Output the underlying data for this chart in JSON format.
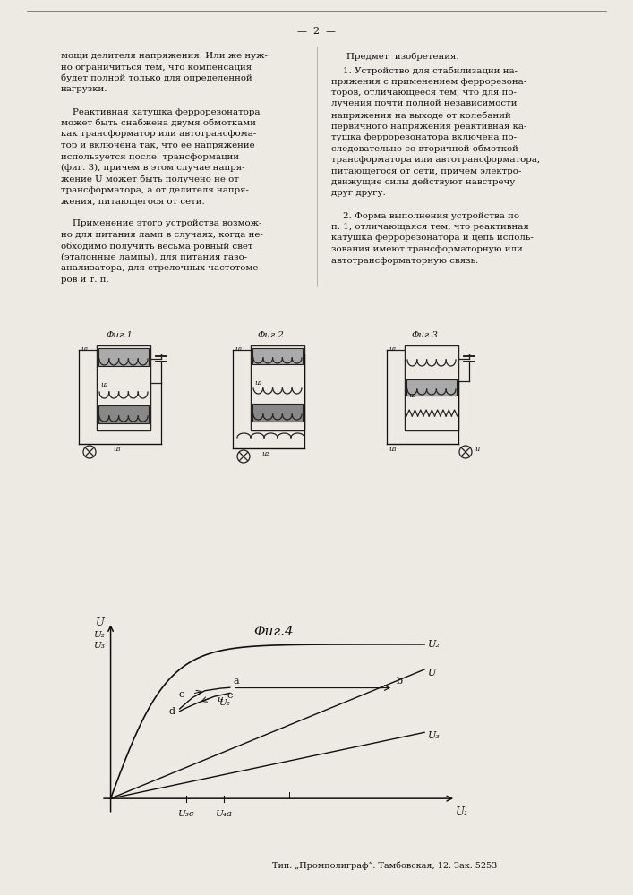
{
  "page_number": "2",
  "bg": "#ede9e3",
  "tc": "#111111",
  "left_col_lines": [
    "мощи делителя напряжения. Или же нуж-",
    "но ограничиться тем, что компенсация",
    "будет полной только для определенной",
    "нагрузки.",
    "",
    "    Реактивная катушка феррорезонатора",
    "может быть снабжена двумя обмотками",
    "как трансформатор или автотрансфома-",
    "тор и включена так, что ее напряжение",
    "используется после  трансформации",
    "(фиг. 3), причем в этом случае напря-",
    "жение U может быть получено не от",
    "трансформатора, а от делителя напря-",
    "жения, питающегося от сети.",
    "",
    "    Применение этого устройства возмож-",
    "но для питания ламп в случаях, когда не-",
    "обходимо получить весьма ровный свет",
    "(эталонные лампы), для питания газо-",
    "анализатора, для стрелочных частотоме-",
    "ров и т. п."
  ],
  "right_col_title": "Предмет  изобретения.",
  "right_col_lines": [
    "    1. Устройство для стабилизации на-",
    "пряжения с применением феррорезона-",
    "торов, отличающееся тем, что для по-",
    "лучения почти полной независимости",
    "напряжения на выходе от колебаний",
    "первичного напряжения реактивная ка-",
    "тушка феррорезонатора включена по-",
    "следовательно со вторичной обмоткой",
    "трансформатора или автотрансформатора,",
    "питающегося от сети, причем электро-",
    "движущие силы действуют навстречу",
    "друг другу.",
    "",
    "    2. Форма выполнения устройства по",
    "п. 1, отличающаяся тем, что реактивная",
    "катушка феррорезонатора и цепь исполь-",
    "зования имеют трансформаторную или",
    "автотрансформаторную связь."
  ],
  "printer_line": "Тип. „Промполиграф“. Тамбовская, 12. Зак. 5253",
  "fig1_title": "Φиг.1",
  "fig2_title": "Φиг.2",
  "fig3_title": "Φиг.3",
  "fig4_title": "Φиг.4"
}
